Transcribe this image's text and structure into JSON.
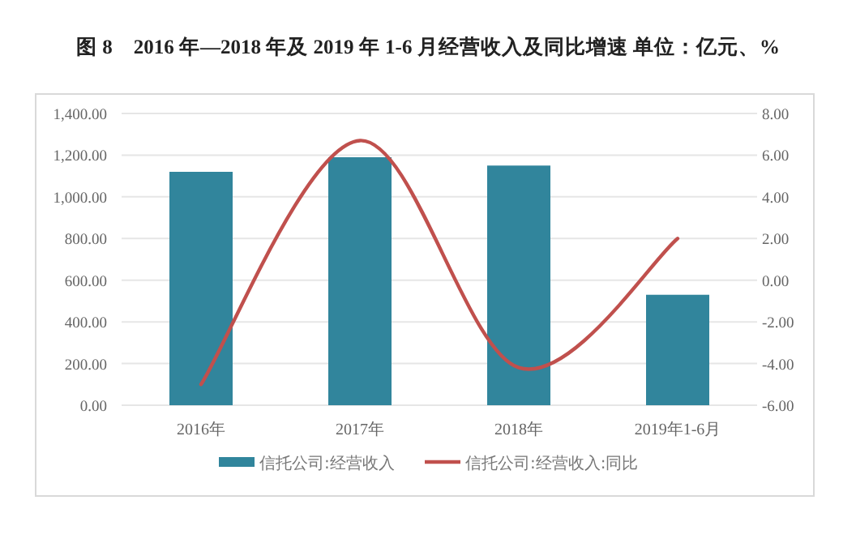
{
  "chart_data": {
    "type": "bar",
    "title": "图 8　2016 年—2018 年及 2019 年 1-6 月经营收入及同比增速  单位：亿元、%",
    "categories": [
      "2016年",
      "2017年",
      "2018年",
      "2019年1-6月"
    ],
    "series": [
      {
        "name": "信托公司:经营收入",
        "color": "#31859c",
        "values": [
          1120,
          1190,
          1150,
          530
        ]
      },
      {
        "name": "信托公司:经营收入:同比",
        "type": "line",
        "axis": "y2",
        "color": "#c0504d",
        "values": [
          -5.0,
          6.7,
          -4.2,
          2.0
        ]
      }
    ],
    "ylim": [
      0,
      1400
    ],
    "yticks": [
      {
        "value": 0,
        "label": "0.00"
      },
      {
        "value": 200,
        "label": "200.00"
      },
      {
        "value": 400,
        "label": "400.00"
      },
      {
        "value": 600,
        "label": "600.00"
      },
      {
        "value": 800,
        "label": "800.00"
      },
      {
        "value": 1000,
        "label": "1,000.00"
      },
      {
        "value": 1200,
        "label": "1,200.00"
      },
      {
        "value": 1400,
        "label": "1,400.00"
      }
    ],
    "y2lim": [
      -6,
      8
    ],
    "y2ticks": [
      {
        "value": -6,
        "label": "-6.00"
      },
      {
        "value": -4,
        "label": "-4.00"
      },
      {
        "value": -2,
        "label": "-2.00"
      },
      {
        "value": 0,
        "label": "0.00"
      },
      {
        "value": 2,
        "label": "2.00"
      },
      {
        "value": 4,
        "label": "4.00"
      },
      {
        "value": 6,
        "label": "6.00"
      },
      {
        "value": 8,
        "label": "8.00"
      }
    ],
    "grid": "y",
    "legend": "bottom"
  }
}
